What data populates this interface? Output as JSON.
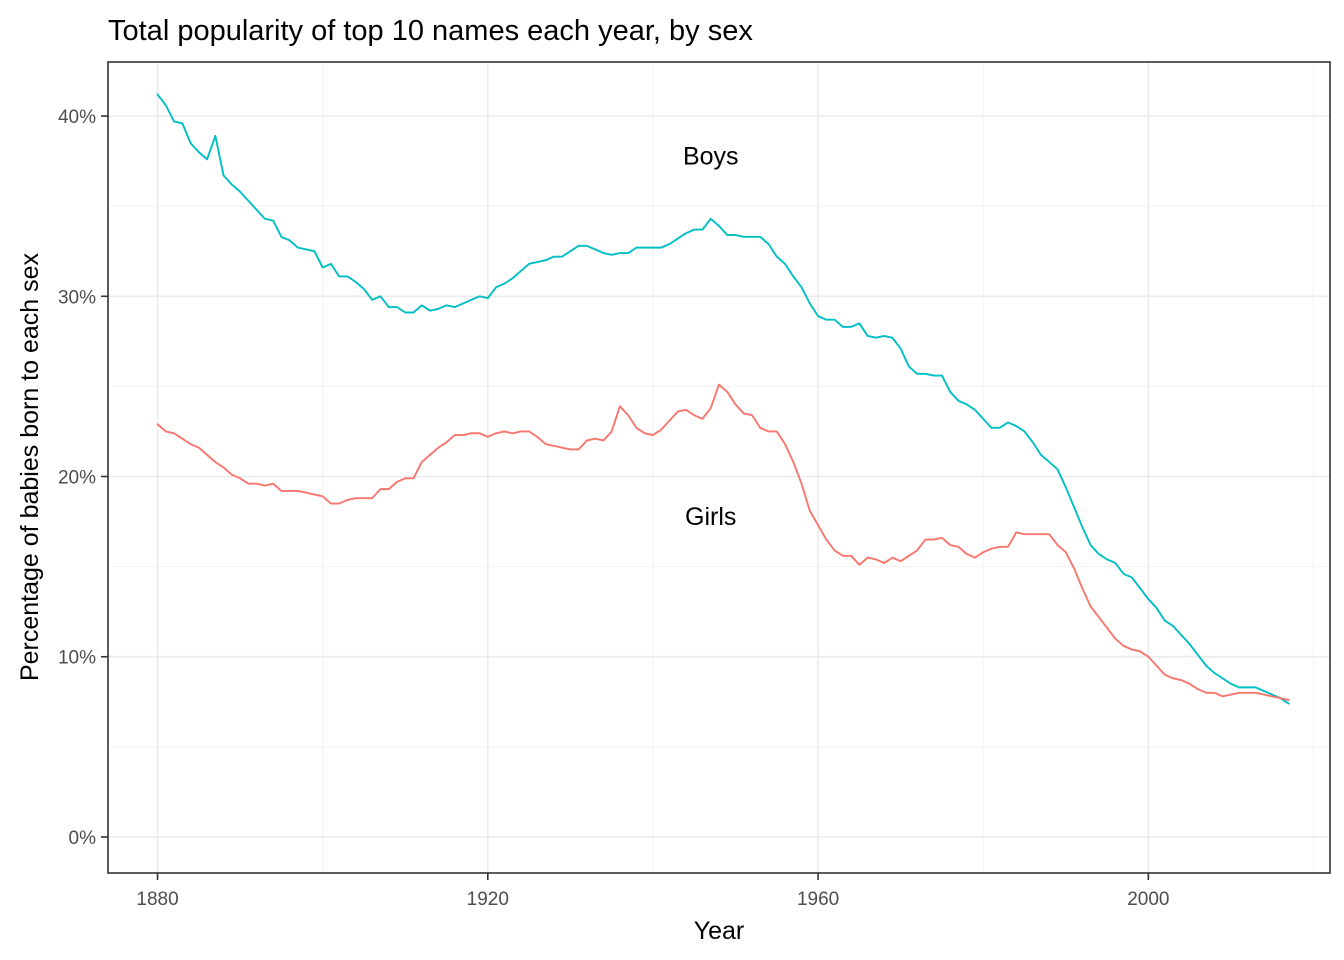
{
  "chart_data": {
    "type": "line",
    "title": "Total popularity of top 10 names each year, by sex",
    "xlabel": "Year",
    "ylabel": "Percentage of babies born to each sex",
    "xlim": [
      1874,
      2022
    ],
    "ylim": [
      -0.02,
      0.43
    ],
    "x_ticks": [
      1880,
      1920,
      1960,
      2000
    ],
    "x_tick_labels": [
      "1880",
      "1920",
      "1960",
      "2000"
    ],
    "x_minor": [
      1900,
      1940,
      1980,
      2020
    ],
    "y_ticks": [
      0,
      0.1,
      0.2,
      0.3,
      0.4
    ],
    "y_tick_labels": [
      "0%",
      "10%",
      "20%",
      "30%",
      "40%"
    ],
    "y_minor": [
      0.05,
      0.15,
      0.25,
      0.35
    ],
    "grid": true,
    "legend": "none",
    "series": [
      {
        "name": "Boys",
        "color": "#00BFC4",
        "x": [
          1880,
          1881,
          1882,
          1883,
          1884,
          1885,
          1886,
          1887,
          1888,
          1889,
          1890,
          1891,
          1892,
          1893,
          1894,
          1895,
          1896,
          1897,
          1898,
          1899,
          1900,
          1901,
          1902,
          1903,
          1904,
          1905,
          1906,
          1907,
          1908,
          1909,
          1910,
          1911,
          1912,
          1913,
          1914,
          1915,
          1916,
          1917,
          1918,
          1919,
          1920,
          1921,
          1922,
          1923,
          1924,
          1925,
          1926,
          1927,
          1928,
          1929,
          1930,
          1931,
          1932,
          1933,
          1934,
          1935,
          1936,
          1937,
          1938,
          1939,
          1940,
          1941,
          1942,
          1943,
          1944,
          1945,
          1946,
          1947,
          1948,
          1949,
          1950,
          1951,
          1952,
          1953,
          1954,
          1955,
          1956,
          1957,
          1958,
          1959,
          1960,
          1961,
          1962,
          1963,
          1964,
          1965,
          1966,
          1967,
          1968,
          1969,
          1970,
          1971,
          1972,
          1973,
          1974,
          1975,
          1976,
          1977,
          1978,
          1979,
          1980,
          1981,
          1982,
          1983,
          1984,
          1985,
          1986,
          1987,
          1988,
          1989,
          1990,
          1991,
          1992,
          1993,
          1994,
          1995,
          1996,
          1997,
          1998,
          1999,
          2000,
          2001,
          2002,
          2003,
          2004,
          2005,
          2006,
          2007,
          2008,
          2009,
          2010,
          2011,
          2012,
          2013,
          2014,
          2015,
          2016,
          2017
        ],
        "y": [
          0.412,
          0.406,
          0.397,
          0.396,
          0.385,
          0.38,
          0.376,
          0.389,
          0.367,
          0.362,
          0.358,
          0.353,
          0.348,
          0.343,
          0.342,
          0.333,
          0.331,
          0.327,
          0.326,
          0.325,
          0.316,
          0.318,
          0.311,
          0.311,
          0.308,
          0.304,
          0.298,
          0.3,
          0.294,
          0.294,
          0.291,
          0.291,
          0.295,
          0.292,
          0.293,
          0.295,
          0.294,
          0.296,
          0.298,
          0.3,
          0.299,
          0.305,
          0.307,
          0.31,
          0.314,
          0.318,
          0.319,
          0.32,
          0.322,
          0.322,
          0.325,
          0.328,
          0.328,
          0.326,
          0.324,
          0.323,
          0.324,
          0.324,
          0.327,
          0.327,
          0.327,
          0.327,
          0.329,
          0.332,
          0.335,
          0.337,
          0.337,
          0.343,
          0.339,
          0.334,
          0.334,
          0.333,
          0.333,
          0.333,
          0.329,
          0.322,
          0.318,
          0.311,
          0.305,
          0.296,
          0.289,
          0.287,
          0.287,
          0.283,
          0.283,
          0.285,
          0.278,
          0.277,
          0.278,
          0.277,
          0.271,
          0.261,
          0.257,
          0.257,
          0.256,
          0.256,
          0.247,
          0.242,
          0.24,
          0.237,
          0.232,
          0.227,
          0.227,
          0.23,
          0.228,
          0.225,
          0.219,
          0.212,
          0.208,
          0.204,
          0.194,
          0.183,
          0.172,
          0.162,
          0.157,
          0.154,
          0.152,
          0.146,
          0.144,
          0.138,
          0.132,
          0.127,
          0.12,
          0.117,
          0.112,
          0.107,
          0.101,
          0.095,
          0.091,
          0.088,
          0.085,
          0.083,
          0.083,
          0.083,
          0.081,
          0.079,
          0.077,
          0.074
        ]
      },
      {
        "name": "Girls",
        "color": "#F8766D",
        "x": [
          1880,
          1881,
          1882,
          1883,
          1884,
          1885,
          1886,
          1887,
          1888,
          1889,
          1890,
          1891,
          1892,
          1893,
          1894,
          1895,
          1896,
          1897,
          1898,
          1899,
          1900,
          1901,
          1902,
          1903,
          1904,
          1905,
          1906,
          1907,
          1908,
          1909,
          1910,
          1911,
          1912,
          1913,
          1914,
          1915,
          1916,
          1917,
          1918,
          1919,
          1920,
          1921,
          1922,
          1923,
          1924,
          1925,
          1926,
          1927,
          1928,
          1929,
          1930,
          1931,
          1932,
          1933,
          1934,
          1935,
          1936,
          1937,
          1938,
          1939,
          1940,
          1941,
          1942,
          1943,
          1944,
          1945,
          1946,
          1947,
          1948,
          1949,
          1950,
          1951,
          1952,
          1953,
          1954,
          1955,
          1956,
          1957,
          1958,
          1959,
          1960,
          1961,
          1962,
          1963,
          1964,
          1965,
          1966,
          1967,
          1968,
          1969,
          1970,
          1971,
          1972,
          1973,
          1974,
          1975,
          1976,
          1977,
          1978,
          1979,
          1980,
          1981,
          1982,
          1983,
          1984,
          1985,
          1986,
          1987,
          1988,
          1989,
          1990,
          1991,
          1992,
          1993,
          1994,
          1995,
          1996,
          1997,
          1998,
          1999,
          2000,
          2001,
          2002,
          2003,
          2004,
          2005,
          2006,
          2007,
          2008,
          2009,
          2010,
          2011,
          2012,
          2013,
          2014,
          2015,
          2016,
          2017
        ],
        "y": [
          0.229,
          0.225,
          0.224,
          0.221,
          0.218,
          0.216,
          0.212,
          0.208,
          0.205,
          0.201,
          0.199,
          0.196,
          0.196,
          0.195,
          0.196,
          0.192,
          0.192,
          0.192,
          0.191,
          0.19,
          0.189,
          0.185,
          0.185,
          0.187,
          0.188,
          0.188,
          0.188,
          0.193,
          0.193,
          0.197,
          0.199,
          0.199,
          0.208,
          0.212,
          0.216,
          0.219,
          0.223,
          0.223,
          0.224,
          0.224,
          0.222,
          0.224,
          0.225,
          0.224,
          0.225,
          0.225,
          0.222,
          0.218,
          0.217,
          0.216,
          0.215,
          0.215,
          0.22,
          0.221,
          0.22,
          0.225,
          0.239,
          0.234,
          0.227,
          0.224,
          0.223,
          0.226,
          0.231,
          0.236,
          0.237,
          0.234,
          0.232,
          0.238,
          0.251,
          0.247,
          0.24,
          0.235,
          0.234,
          0.227,
          0.225,
          0.225,
          0.218,
          0.208,
          0.196,
          0.181,
          0.173,
          0.165,
          0.159,
          0.156,
          0.156,
          0.151,
          0.155,
          0.154,
          0.152,
          0.155,
          0.153,
          0.156,
          0.159,
          0.165,
          0.165,
          0.166,
          0.162,
          0.161,
          0.157,
          0.155,
          0.158,
          0.16,
          0.161,
          0.161,
          0.169,
          0.168,
          0.168,
          0.168,
          0.168,
          0.162,
          0.158,
          0.149,
          0.138,
          0.128,
          0.122,
          0.116,
          0.11,
          0.106,
          0.104,
          0.103,
          0.1,
          0.095,
          0.09,
          0.088,
          0.087,
          0.085,
          0.082,
          0.08,
          0.08,
          0.078,
          0.079,
          0.08,
          0.08,
          0.08,
          0.079,
          0.078,
          0.077,
          0.076
        ]
      }
    ],
    "annotations": [
      {
        "text": "Boys",
        "x": 1947,
        "y": 0.378
      },
      {
        "text": "Girls",
        "x": 1947,
        "y": 0.178
      }
    ]
  }
}
